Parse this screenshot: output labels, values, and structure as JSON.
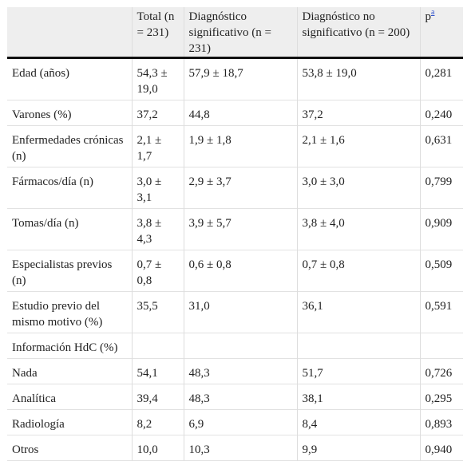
{
  "header": {
    "col0": "",
    "col1": "Total (n = 231)",
    "col2": "Diagnóstico significativo (n = 231)",
    "col3": "Diagnóstico no significativo (n = 200)",
    "col4_base": "p",
    "col4_footnote": "a"
  },
  "rows": [
    {
      "label": "Edad (años)",
      "total": "54,3 ± 19,0",
      "sig": "57,9 ± 18,7",
      "nosig": "53,8 ± 19,0",
      "p": "0,281"
    },
    {
      "label": "Varones (%)",
      "total": "37,2",
      "sig": "44,8",
      "nosig": "37,2",
      "p": "0,240"
    },
    {
      "label": "Enfermedades crónicas (n)",
      "total": "2,1 ± 1,7",
      "sig": "1,9 ± 1,8",
      "nosig": "2,1 ± 1,6",
      "p": "0,631"
    },
    {
      "label": "Fármacos/día (n)",
      "total": "3,0 ± 3,1",
      "sig": "2,9 ± 3,7",
      "nosig": "3,0 ± 3,0",
      "p": "0,799"
    },
    {
      "label": "Tomas/día (n)",
      "total": "3,8 ± 4,3",
      "sig": "3,9 ± 5,7",
      "nosig": "3,8 ± 4,0",
      "p": "0,909"
    },
    {
      "label": "Especialistas previos (n)",
      "total": "0,7 ± 0,8",
      "sig": "0,6 ± 0,8",
      "nosig": "0,7 ± 0,8",
      "p": "0,509"
    },
    {
      "label": "Estudio previo del mismo motivo (%)",
      "total": "35,5",
      "sig": "31,0",
      "nosig": "36,1",
      "p": "0,591"
    },
    {
      "label": "Información HdC (%)",
      "total": "",
      "sig": "",
      "nosig": "",
      "p": ""
    },
    {
      "label": "Nada",
      "total": "54,1",
      "sig": "48,3",
      "nosig": "51,7",
      "p": "0,726"
    },
    {
      "label": "Analítica",
      "total": "39,4",
      "sig": "48,3",
      "nosig": "38,1",
      "p": "0,295"
    },
    {
      "label": "Radiología",
      "total": "8,2",
      "sig": "6,9",
      "nosig": "8,4",
      "p": "0,893"
    },
    {
      "label": "Otros",
      "total": "10,0",
      "sig": "10,3",
      "nosig": "9,9",
      "p": "0,940"
    }
  ]
}
